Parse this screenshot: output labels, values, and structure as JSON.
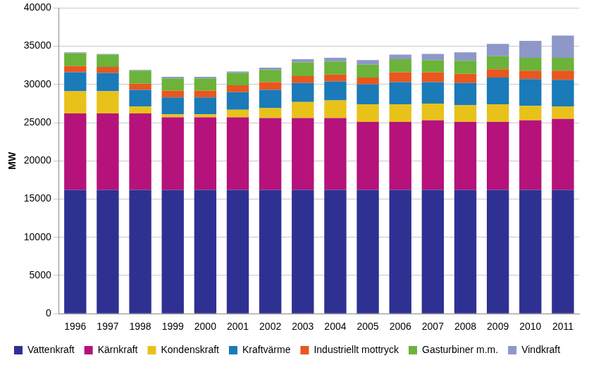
{
  "chart_data": {
    "type": "bar",
    "stacked": true,
    "y_label": "MW",
    "categories": [
      "1996",
      "1997",
      "1998",
      "1999",
      "2000",
      "2001",
      "2002",
      "2003",
      "2004",
      "2005",
      "2006",
      "2007",
      "2008",
      "2009",
      "2010",
      "2011"
    ],
    "ylim": [
      0,
      40000
    ],
    "yticks": [
      0,
      5000,
      10000,
      15000,
      20000,
      25000,
      30000,
      35000,
      40000
    ],
    "grid": true,
    "legend": "bottom",
    "series": [
      {
        "name": "Vattenkraft",
        "color": "#2e3192",
        "values": [
          16200,
          16200,
          16200,
          16200,
          16200,
          16200,
          16200,
          16200,
          16200,
          16200,
          16200,
          16200,
          16200,
          16200,
          16200,
          16200
        ]
      },
      {
        "name": "Kärnkraft",
        "color": "#b5127b",
        "values": [
          10000,
          10000,
          10000,
          9500,
          9500,
          9500,
          9400,
          9400,
          9400,
          8900,
          8900,
          9100,
          8900,
          8900,
          9100,
          9300
        ]
      },
      {
        "name": "Kondenskraft",
        "color": "#e8c21a",
        "values": [
          2900,
          2900,
          900,
          400,
          400,
          1000,
          1300,
          2100,
          2300,
          2300,
          2300,
          2200,
          2200,
          2300,
          1900,
          1600
        ]
      },
      {
        "name": "Kraftvärme",
        "color": "#1b7ab8",
        "values": [
          2500,
          2400,
          2200,
          2200,
          2200,
          2300,
          2400,
          2500,
          2500,
          2600,
          2900,
          2800,
          2900,
          3500,
          3500,
          3500
        ]
      },
      {
        "name": "Industriellt mottryck",
        "color": "#e8571e",
        "values": [
          800,
          800,
          800,
          900,
          900,
          900,
          1000,
          900,
          900,
          900,
          1300,
          1300,
          1200,
          1100,
          1100,
          1200
        ]
      },
      {
        "name": "Gasturbiner m.m.",
        "color": "#6bb33a",
        "values": [
          1700,
          1600,
          1700,
          1600,
          1600,
          1600,
          1600,
          1800,
          1700,
          1700,
          1700,
          1600,
          1700,
          1700,
          1700,
          1700
        ]
      },
      {
        "name": "Vindkraft",
        "color": "#8e98c8",
        "values": [
          100,
          100,
          100,
          200,
          200,
          200,
          300,
          400,
          500,
          600,
          600,
          800,
          1100,
          1600,
          2200,
          2900
        ]
      }
    ]
  }
}
